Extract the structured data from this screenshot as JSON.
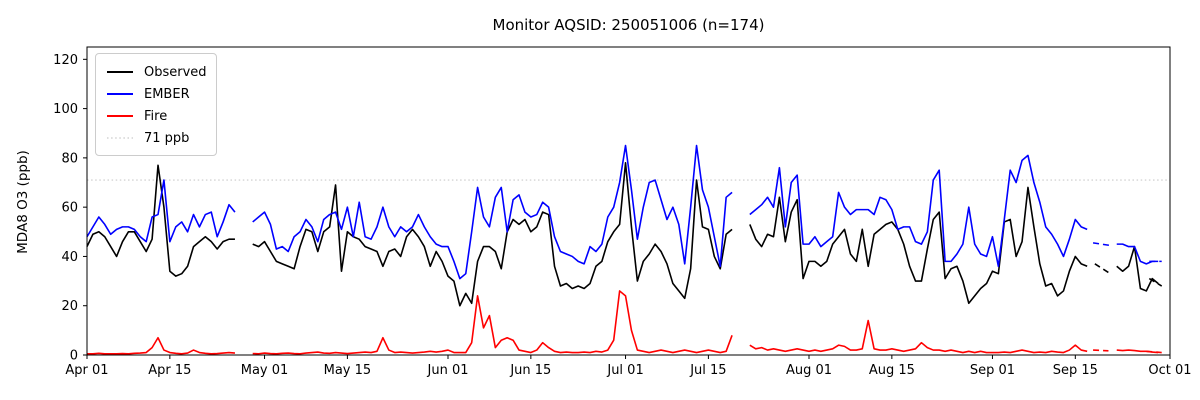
{
  "title": "Monitor AQSID: 250051006 (n=174)",
  "axes": {
    "ylabel": "MDA8 O3 (ppb)",
    "yticks": [
      0,
      20,
      40,
      60,
      80,
      100,
      120
    ],
    "ylim": [
      0,
      125
    ],
    "xtick_labels": [
      "Apr 01",
      "Apr 15",
      "May 01",
      "May 15",
      "Jun 01",
      "Jun 15",
      "Jul 01",
      "Jul 15",
      "Aug 01",
      "Aug 15",
      "Sep 01",
      "Sep 15",
      "Oct 01"
    ],
    "xtick_days": [
      0,
      14,
      30,
      44,
      61,
      75,
      91,
      105,
      122,
      136,
      153,
      167,
      183
    ],
    "total_days": 183,
    "spine_color": "#000000"
  },
  "reference_line": {
    "label": "71 ppb",
    "value": 71,
    "color": "#d3d3d3",
    "style": "dotted"
  },
  "legend": {
    "items": [
      {
        "label": "Observed",
        "color": "#000000",
        "style": "solid"
      },
      {
        "label": "EMBER",
        "color": "#0000ff",
        "style": "solid"
      },
      {
        "label": "Fire",
        "color": "#ff0000",
        "style": "solid"
      },
      {
        "label": "71 ppb",
        "color": "#d3d3d3",
        "style": "dotted"
      }
    ]
  },
  "chart_data": {
    "type": "line",
    "x_start_label": "Apr 01",
    "x_end_label": "Oct 01",
    "x_unit": "day",
    "note_n": 174,
    "series": [
      {
        "name": "Observed",
        "color": "#000000",
        "values": [
          44,
          49,
          50,
          48,
          44,
          40,
          46,
          50,
          50,
          46,
          42,
          47,
          77,
          60,
          34,
          32,
          33,
          36,
          44,
          46,
          48,
          46,
          43,
          46,
          47,
          47,
          null,
          null,
          45,
          44,
          46,
          42,
          38,
          37,
          36,
          35,
          44,
          51,
          50,
          42,
          50,
          52,
          69,
          34,
          50,
          48,
          47,
          44,
          43,
          42,
          36,
          42,
          43,
          40,
          48,
          51,
          48,
          44,
          36,
          42,
          38,
          32,
          30,
          20,
          25,
          21,
          38,
          44,
          44,
          42,
          35,
          50,
          55,
          53,
          55,
          50,
          52,
          58,
          57,
          36,
          28,
          29,
          27,
          28,
          27,
          29,
          36,
          38,
          46,
          50,
          53,
          78,
          52,
          30,
          38,
          41,
          45,
          42,
          37,
          29,
          26,
          23,
          35,
          71,
          52,
          51,
          40,
          35,
          49,
          51,
          null,
          null,
          53,
          47,
          44,
          49,
          48,
          64,
          46,
          58,
          63,
          31,
          38,
          38,
          36,
          38,
          45,
          48,
          51,
          41,
          38,
          51,
          36,
          49,
          51,
          53,
          54,
          51,
          45,
          36,
          30,
          30,
          43,
          55,
          58,
          31,
          35,
          36,
          30,
          21,
          24,
          27,
          29,
          34,
          33,
          54,
          55,
          40,
          46,
          68,
          52,
          37,
          28,
          29,
          24,
          26,
          34,
          40,
          37,
          36,
          null,
          null,
          null,
          null,
          36,
          34,
          36,
          44,
          27,
          26,
          31,
          29,
          null
        ]
      },
      {
        "name": "EMBER",
        "color": "#0000ff",
        "values": [
          48,
          52,
          56,
          53,
          49,
          51,
          52,
          52,
          51,
          48,
          46,
          56,
          57,
          71,
          46,
          52,
          54,
          50,
          57,
          52,
          57,
          58,
          48,
          54,
          61,
          58,
          null,
          null,
          54,
          56,
          58,
          53,
          43,
          44,
          42,
          48,
          50,
          55,
          52,
          46,
          55,
          57,
          58,
          51,
          60,
          48,
          62,
          48,
          47,
          52,
          60,
          52,
          48,
          52,
          50,
          52,
          57,
          52,
          48,
          45,
          44,
          44,
          38,
          31,
          33,
          50,
          68,
          56,
          52,
          64,
          68,
          50,
          63,
          65,
          58,
          56,
          57,
          62,
          60,
          48,
          42,
          41,
          40,
          38,
          37,
          44,
          42,
          45,
          56,
          60,
          70,
          85,
          67,
          47,
          60,
          70,
          71,
          63,
          55,
          60,
          53,
          37,
          60,
          85,
          67,
          60,
          48,
          36,
          64,
          66,
          null,
          null,
          57,
          59,
          61,
          64,
          60,
          76,
          52,
          70,
          73,
          45,
          45,
          48,
          44,
          46,
          48,
          66,
          60,
          57,
          59,
          59,
          59,
          57,
          64,
          63,
          59,
          51,
          52,
          52,
          46,
          45,
          50,
          71,
          75,
          38,
          38,
          41,
          45,
          60,
          45,
          41,
          40,
          48,
          36,
          55,
          75,
          70,
          79,
          81,
          70,
          62,
          52,
          49,
          45,
          40,
          47,
          55,
          52,
          51,
          null,
          null,
          null,
          null,
          45,
          45,
          44,
          44,
          38,
          37,
          38,
          38,
          null
        ]
      },
      {
        "name": "Fire",
        "color": "#ff0000",
        "values": [
          0.5,
          0.5,
          0.7,
          0.5,
          0.5,
          0.5,
          0.6,
          0.5,
          0.7,
          0.8,
          1,
          3,
          7,
          2,
          1,
          0.7,
          0.5,
          0.8,
          2,
          1,
          0.7,
          0.5,
          0.6,
          0.8,
          1,
          0.8,
          null,
          null,
          0.6,
          0.5,
          0.8,
          0.6,
          0.5,
          0.7,
          0.8,
          0.6,
          0.5,
          0.8,
          1,
          1.2,
          0.8,
          0.7,
          1,
          0.8,
          0.6,
          0.8,
          1,
          1.2,
          1,
          1.5,
          7,
          2,
          1,
          1.2,
          1,
          0.8,
          1,
          1.2,
          1.5,
          1.2,
          1.5,
          2,
          1,
          1,
          1,
          5,
          24,
          11,
          16,
          3,
          6,
          7,
          6,
          2,
          1.5,
          1,
          2,
          5,
          3,
          1.5,
          1,
          1.2,
          1,
          1,
          1.2,
          1,
          1.5,
          1.2,
          2,
          6,
          26,
          24,
          10,
          2,
          1.5,
          1,
          1.5,
          2,
          1.5,
          1,
          1.5,
          2,
          1.5,
          1,
          1.5,
          2,
          1.5,
          1,
          1.5,
          8,
          null,
          null,
          4,
          2.5,
          3,
          2,
          2.5,
          2,
          1.5,
          2,
          2.5,
          2,
          1.5,
          2,
          1.5,
          2,
          2.5,
          4,
          3.5,
          2,
          2,
          2.5,
          14,
          2.5,
          2,
          2,
          2.5,
          2,
          1.5,
          2,
          2.5,
          5,
          3,
          2,
          2,
          1.5,
          2,
          1.5,
          1,
          1.5,
          1,
          1.5,
          1,
          1,
          1,
          1.2,
          1,
          1.5,
          2,
          1.5,
          1,
          1.2,
          1,
          1.5,
          1.2,
          1,
          2,
          4,
          2,
          1.5,
          null,
          null,
          null,
          null,
          2,
          1.8,
          2,
          1.8,
          1.5,
          1.5,
          1.2,
          1,
          null
        ]
      }
    ],
    "dashed_segments": [
      {
        "series": "Observed",
        "from_day": 170.3,
        "from_value": 37,
        "to_day": 172.6,
        "to_value": 33.5
      },
      {
        "series": "EMBER",
        "from_day": 170.0,
        "from_value": 45.5,
        "to_day": 172.8,
        "to_value": 44.5
      },
      {
        "series": "Fire",
        "from_day": 170.0,
        "from_value": 2.0,
        "to_day": 172.6,
        "to_value": 1.7
      },
      {
        "series": "Observed",
        "from_day": 179.5,
        "from_value": 31,
        "to_day": 181.6,
        "to_value": 28
      },
      {
        "series": "EMBER",
        "from_day": 179.5,
        "from_value": 38,
        "to_day": 181.6,
        "to_value": 38
      },
      {
        "series": "Fire",
        "from_day": 179.0,
        "from_value": 1.5,
        "to_day": 181.6,
        "to_value": 1.0
      }
    ]
  }
}
